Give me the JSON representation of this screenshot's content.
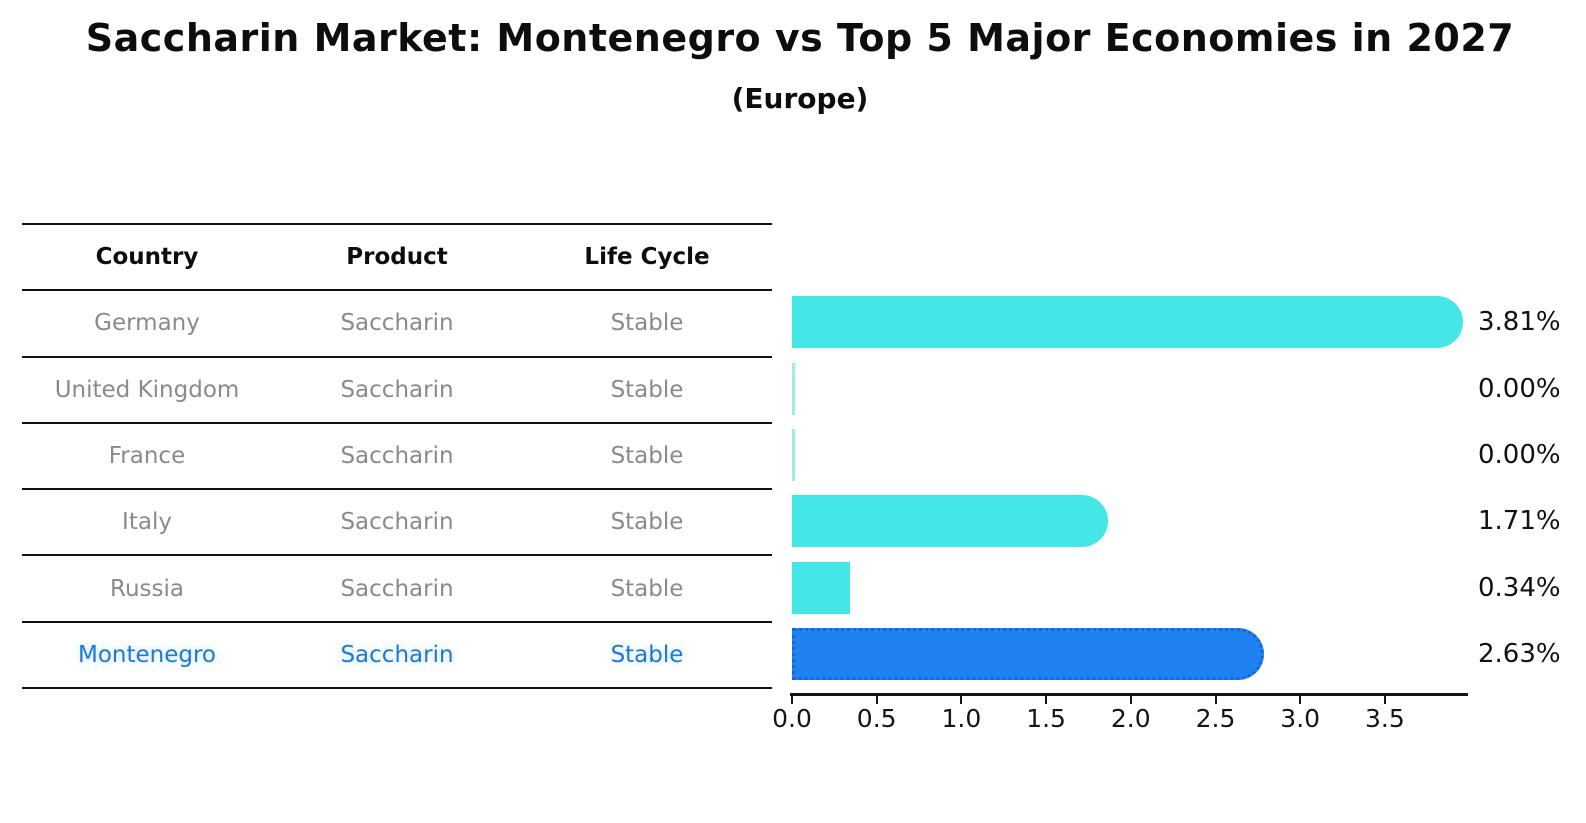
{
  "title": "Saccharin Market: Montenegro vs Top 5 Major Economies in 2027",
  "subtitle": "(Europe)",
  "table": {
    "headers": [
      "Country",
      "Product",
      "Life Cycle"
    ],
    "rows": [
      {
        "country": "Germany",
        "product": "Saccharin",
        "life_cycle": "Stable",
        "highlighted": false
      },
      {
        "country": "United Kingdom",
        "product": "Saccharin",
        "life_cycle": "Stable",
        "highlighted": false
      },
      {
        "country": "France",
        "product": "Saccharin",
        "life_cycle": "Stable",
        "highlighted": false
      },
      {
        "country": "Italy",
        "product": "Saccharin",
        "life_cycle": "Stable",
        "highlighted": false
      },
      {
        "country": "Russia",
        "product": "Saccharin",
        "life_cycle": "Stable",
        "highlighted": false
      },
      {
        "country": "Montenegro",
        "product": "Saccharin",
        "life_cycle": "Stable",
        "highlighted": true
      }
    ]
  },
  "chart_data": {
    "type": "bar",
    "orientation": "horizontal",
    "title": "Saccharin Market: Montenegro vs Top 5 Major Economies in 2027",
    "subtitle": "(Europe)",
    "categories": [
      "Germany",
      "United Kingdom",
      "France",
      "Italy",
      "Russia",
      "Montenegro"
    ],
    "values": [
      3.81,
      0.0,
      0.0,
      1.71,
      0.34,
      2.63
    ],
    "value_labels": [
      "3.81%",
      "0.00%",
      "0.00%",
      "1.71%",
      "0.34%",
      "2.63%"
    ],
    "unit": "%",
    "x_ticks": [
      0.0,
      0.5,
      1.0,
      1.5,
      2.0,
      2.5,
      3.0,
      3.5
    ],
    "x_tick_labels": [
      "0.0",
      "0.5",
      "1.0",
      "1.5",
      "2.0",
      "2.5",
      "3.0",
      "3.5"
    ],
    "xlim": [
      0,
      4.0
    ],
    "xlabel": "",
    "ylabel": "",
    "grid": false,
    "legend": "none",
    "highlight_index": 5,
    "bar_color": "#45e6e6",
    "highlight_bar_color": "#1e82f0",
    "highlight_border_color": "#1565dc"
  },
  "colors": {
    "background": "#ffffff",
    "bar": "#45e6e6",
    "highlight_bar": "#1e82f0",
    "highlight_border": "#1565dc",
    "table_text": "#8a8a8a",
    "highlight_text": "#1f78d1",
    "heading_text": "#0d0d0d",
    "axis": "#151515"
  }
}
